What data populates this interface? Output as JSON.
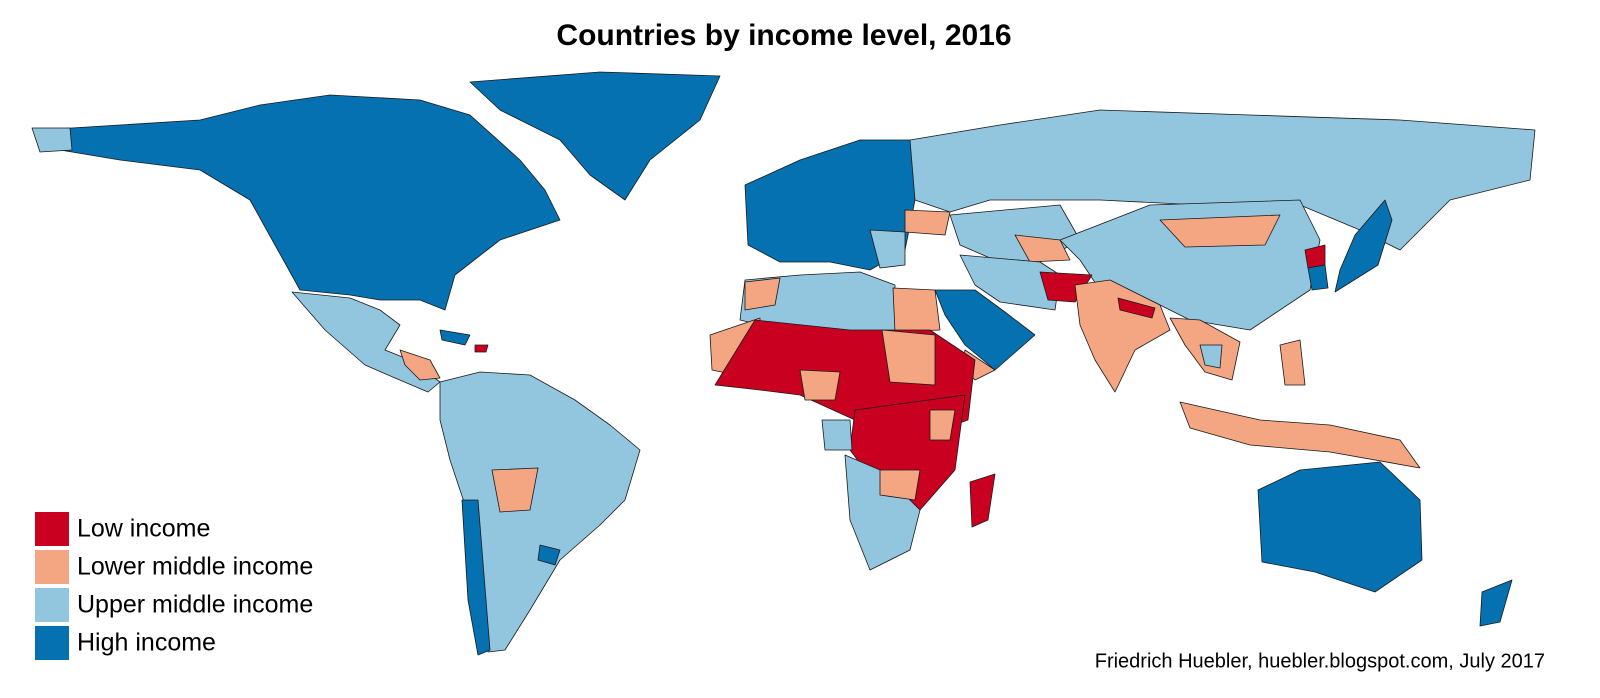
{
  "title": "Countries by income level, 2016",
  "legend": [
    {
      "label": "Low income",
      "color": "#ca0020"
    },
    {
      "label": "Lower middle income",
      "color": "#f4a582"
    },
    {
      "label": "Upper middle income",
      "color": "#92c5de"
    },
    {
      "label": "High income",
      "color": "#0571b0"
    }
  ],
  "credit": "Friedrich Huebler, huebler.blogspot.com, July 2017"
}
